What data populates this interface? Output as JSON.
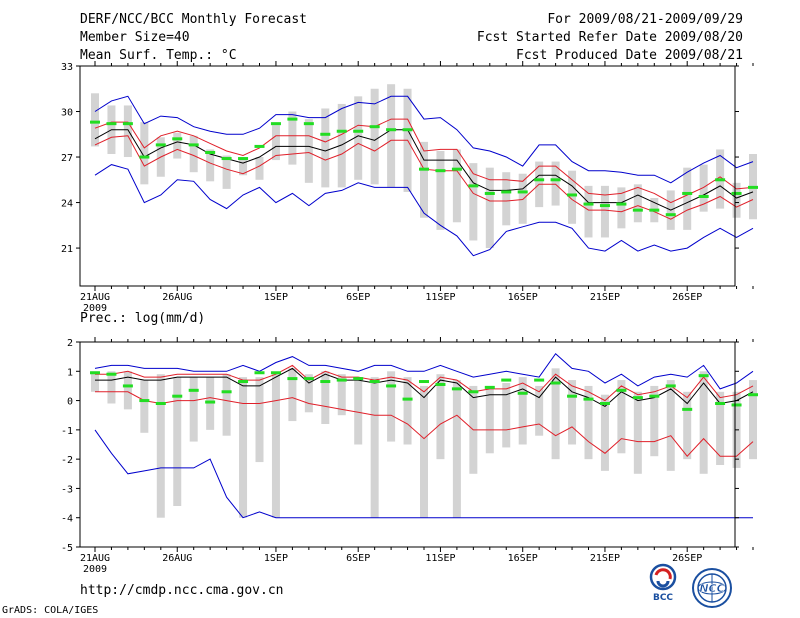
{
  "header": {
    "title": "DERF/NCC/BCC Monthly Forecast",
    "member_size": "Member Size=40",
    "variable": "Mean Surf. Temp.: °C",
    "forecast_period": "For 2009/08/21-2009/09/29",
    "refer_date": "Fcst Started Refer Date 2009/08/20",
    "produced_date": "Fcst Produced Date 2009/08/21"
  },
  "footer": {
    "url": "http://cmdp.ncc.cma.gov.cn",
    "credit": "GrADS: COLA/IGES"
  },
  "logos": {
    "bcc": "BCC",
    "ncc": "NCC"
  },
  "colors": {
    "ensemble_mean": "#000000",
    "spread": "#e0202a",
    "extreme": "#0000cc",
    "box": "#d3d3d3",
    "median": "#22dd22"
  },
  "chart_data": [
    {
      "type": "box-ensemble",
      "title": "Mean Surf. Temp.: °C",
      "year_label": "2009",
      "categories": [
        "21AUG",
        "26AUG",
        "1SEP",
        "6SEP",
        "11SEP",
        "16SEP",
        "21SEP",
        "26SEP"
      ],
      "category_day_index": [
        0,
        5,
        11,
        16,
        21,
        26,
        31,
        36
      ],
      "ylim": [
        18.5,
        33
      ],
      "yticks": [
        21,
        24,
        27,
        30,
        33
      ],
      "series": [
        {
          "name": "ensemble_mean",
          "values": [
            28.2,
            28.8,
            28.8,
            27.0,
            27.6,
            28.0,
            27.8,
            27.2,
            26.9,
            26.6,
            27.0,
            27.7,
            27.7,
            27.7,
            27.4,
            27.8,
            28.4,
            28.1,
            28.8,
            28.8,
            26.8,
            26.8,
            26.8,
            25.3,
            24.8,
            24.8,
            24.9,
            25.8,
            25.8,
            25.1,
            24.0,
            24.0,
            24.0,
            24.5,
            24.0,
            23.5,
            24.0,
            24.5,
            25.1,
            24.3,
            24.7
          ]
        },
        {
          "name": "spread_upper",
          "values": [
            28.9,
            29.3,
            29.3,
            27.6,
            28.4,
            28.7,
            28.4,
            27.9,
            27.4,
            27.1,
            27.6,
            28.4,
            28.4,
            28.4,
            28.0,
            28.5,
            29.1,
            29.0,
            29.5,
            29.5,
            27.4,
            27.5,
            27.5,
            25.9,
            25.5,
            25.5,
            25.4,
            26.4,
            26.4,
            25.5,
            24.6,
            24.5,
            24.6,
            25.0,
            24.6,
            24.0,
            24.5,
            25.0,
            25.7,
            24.9,
            25.0
          ]
        },
        {
          "name": "spread_lower",
          "values": [
            27.8,
            28.3,
            28.4,
            26.4,
            27.0,
            27.5,
            27.1,
            26.6,
            26.2,
            25.9,
            26.4,
            27.1,
            27.2,
            27.3,
            26.8,
            27.2,
            27.9,
            27.4,
            28.1,
            28.1,
            26.2,
            26.1,
            26.1,
            24.6,
            24.1,
            24.1,
            24.2,
            25.2,
            25.2,
            24.2,
            23.5,
            23.5,
            23.4,
            23.8,
            23.4,
            22.9,
            23.5,
            23.9,
            24.4,
            23.7,
            24.2
          ]
        },
        {
          "name": "max",
          "values": [
            30.0,
            30.7,
            31.0,
            29.2,
            29.7,
            29.6,
            29.0,
            28.7,
            28.5,
            28.5,
            28.9,
            29.8,
            29.8,
            29.6,
            29.6,
            30.2,
            30.6,
            30.5,
            31.0,
            31.0,
            29.5,
            29.6,
            28.8,
            27.6,
            27.4,
            27.0,
            26.4,
            27.8,
            27.8,
            26.7,
            26.1,
            26.1,
            26.0,
            25.8,
            25.8,
            25.3,
            26.0,
            26.6,
            27.1,
            26.3,
            26.7
          ]
        },
        {
          "name": "min",
          "values": [
            25.8,
            26.5,
            26.2,
            24.0,
            24.5,
            25.5,
            25.4,
            24.2,
            23.6,
            24.5,
            25.0,
            24.0,
            24.6,
            23.8,
            24.6,
            24.8,
            25.3,
            25.0,
            25.0,
            25.0,
            23.3,
            22.5,
            21.8,
            20.5,
            20.9,
            22.1,
            22.4,
            22.7,
            22.7,
            22.3,
            21.0,
            20.8,
            21.5,
            20.8,
            21.2,
            20.8,
            21.0,
            21.7,
            22.3,
            21.7,
            22.3
          ]
        },
        {
          "name": "box_high",
          "values": [
            31.2,
            30.4,
            30.4,
            29.3,
            28.3,
            28.6,
            28.4,
            27.5,
            27.1,
            26.8,
            27.0,
            29.1,
            30.0,
            29.5,
            30.2,
            30.5,
            31.0,
            31.5,
            31.8,
            31.5,
            28.0,
            27.4,
            27.5,
            26.6,
            26.3,
            26.0,
            25.9,
            26.7,
            26.7,
            26.1,
            25.1,
            25.1,
            25.0,
            25.2,
            24.3,
            24.8,
            26.3,
            26.5,
            27.5,
            25.3,
            27.2
          ]
        },
        {
          "name": "box_low",
          "values": [
            27.7,
            27.2,
            27.0,
            25.2,
            25.7,
            26.9,
            26.0,
            25.4,
            24.9,
            25.8,
            25.5,
            26.8,
            26.5,
            25.3,
            25.0,
            25.0,
            25.5,
            25.2,
            25.0,
            24.7,
            23.0,
            22.2,
            22.7,
            21.5,
            21.0,
            22.5,
            22.6,
            23.7,
            23.8,
            22.6,
            21.7,
            21.7,
            22.3,
            22.7,
            22.7,
            22.2,
            22.2,
            23.4,
            23.6,
            23.0,
            22.9
          ]
        },
        {
          "name": "median",
          "values": [
            29.3,
            29.2,
            29.2,
            27.0,
            27.8,
            28.2,
            27.8,
            27.3,
            26.9,
            26.9,
            27.7,
            29.2,
            29.5,
            29.2,
            28.5,
            28.7,
            28.7,
            29.0,
            28.8,
            28.8,
            26.2,
            26.1,
            26.2,
            25.1,
            24.6,
            24.7,
            24.7,
            25.5,
            25.5,
            24.5,
            23.9,
            23.8,
            23.9,
            23.5,
            23.5,
            23.2,
            24.6,
            24.4,
            25.5,
            24.6,
            25.0
          ]
        }
      ]
    },
    {
      "type": "box-ensemble",
      "title": "Prec.: log(mm/d)",
      "year_label": "2009",
      "categories": [
        "21AUG",
        "26AUG",
        "1SEP",
        "6SEP",
        "11SEP",
        "16SEP",
        "21SEP",
        "26SEP"
      ],
      "category_day_index": [
        0,
        5,
        11,
        16,
        21,
        26,
        31,
        36
      ],
      "ylim": [
        -5,
        2
      ],
      "yticks": [
        -5,
        -4,
        -3,
        -2,
        -1,
        0,
        1,
        2
      ],
      "series": [
        {
          "name": "ensemble_mean",
          "values": [
            0.7,
            0.7,
            0.8,
            0.7,
            0.7,
            0.8,
            0.8,
            0.8,
            0.8,
            0.5,
            0.5,
            0.8,
            1.1,
            0.6,
            0.9,
            0.7,
            0.7,
            0.6,
            0.7,
            0.6,
            0.1,
            0.7,
            0.6,
            0.1,
            0.2,
            0.2,
            0.4,
            0.1,
            0.8,
            0.3,
            0.1,
            -0.2,
            0.3,
            0.0,
            0.1,
            0.4,
            -0.1,
            0.6,
            -0.1,
            0.0,
            0.3
          ]
        },
        {
          "name": "spread_upper",
          "values": [
            0.9,
            0.9,
            1.0,
            0.8,
            0.8,
            0.9,
            0.9,
            0.9,
            0.9,
            0.7,
            0.7,
            0.9,
            1.2,
            0.7,
            1.0,
            0.8,
            0.8,
            0.7,
            0.8,
            0.7,
            0.3,
            0.8,
            0.7,
            0.3,
            0.4,
            0.4,
            0.6,
            0.3,
            0.9,
            0.5,
            0.3,
            0.0,
            0.5,
            0.2,
            0.3,
            0.5,
            0.1,
            0.8,
            0.1,
            0.2,
            0.5
          ]
        },
        {
          "name": "spread_lower",
          "values": [
            0.3,
            0.3,
            0.3,
            0.0,
            -0.1,
            0.0,
            0.0,
            0.1,
            0.0,
            -0.1,
            -0.1,
            0.0,
            0.1,
            -0.1,
            -0.2,
            -0.3,
            -0.4,
            -0.5,
            -0.5,
            -0.8,
            -1.3,
            -0.8,
            -0.5,
            -1.0,
            -1.0,
            -1.0,
            -0.9,
            -0.8,
            -1.2,
            -0.9,
            -1.4,
            -1.8,
            -1.3,
            -1.4,
            -1.4,
            -1.2,
            -1.9,
            -1.3,
            -1.9,
            -1.9,
            -1.4
          ]
        },
        {
          "name": "max",
          "values": [
            1.1,
            1.2,
            1.2,
            1.1,
            1.1,
            1.1,
            1.0,
            1.0,
            1.0,
            1.2,
            1.0,
            1.3,
            1.5,
            1.2,
            1.2,
            1.1,
            1.0,
            1.2,
            1.2,
            1.0,
            1.0,
            1.2,
            1.0,
            0.8,
            0.9,
            1.0,
            0.9,
            0.8,
            1.6,
            1.1,
            1.0,
            0.6,
            0.9,
            0.5,
            0.8,
            0.9,
            0.8,
            1.2,
            0.4,
            0.6,
            1.0
          ]
        },
        {
          "name": "min",
          "values": [
            -1.0,
            -1.8,
            -2.5,
            -2.4,
            -2.3,
            -2.3,
            -2.3,
            -2.0,
            -3.3,
            -4.0,
            -3.8,
            -4.0,
            -4.0,
            -4.0,
            -4.0,
            -4.0,
            -4.0,
            -4.0,
            -4.0,
            -4.0,
            -4.0,
            -4.0,
            -4.0,
            -4.0,
            -4.0,
            -4.0,
            -4.0,
            -4.0,
            -4.0,
            -4.0,
            -4.0,
            -4.0,
            -4.0,
            -4.0,
            -4.0,
            -4.0,
            -4.0,
            -4.0,
            -4.0,
            -4.0,
            -4.0
          ]
        },
        {
          "name": "box_high",
          "values": [
            1.0,
            1.0,
            1.0,
            0.7,
            0.9,
            0.8,
            0.8,
            0.8,
            0.9,
            0.8,
            0.8,
            0.9,
            1.1,
            0.9,
            1.0,
            0.9,
            0.8,
            0.8,
            1.0,
            0.8,
            0.5,
            0.9,
            0.7,
            0.5,
            0.5,
            0.6,
            0.8,
            0.5,
            1.1,
            0.7,
            0.5,
            0.2,
            0.7,
            0.3,
            0.5,
            0.7,
            0.3,
            1.0,
            0.3,
            0.3,
            0.7
          ]
        },
        {
          "name": "box_low",
          "values": [
            0.3,
            -0.1,
            -0.3,
            -1.1,
            -4.0,
            -3.6,
            -1.4,
            -1.0,
            -1.2,
            -4.0,
            -2.1,
            -4.0,
            -0.7,
            -0.4,
            -0.8,
            -0.5,
            -1.5,
            -4.0,
            -1.4,
            -1.5,
            -4.0,
            -2.0,
            -4.0,
            -2.5,
            -1.8,
            -1.6,
            -1.5,
            -1.2,
            -2.0,
            -1.5,
            -2.0,
            -2.4,
            -1.8,
            -2.5,
            -1.9,
            -2.4,
            -2.0,
            -2.5,
            -2.2,
            -2.3,
            -2.0
          ]
        },
        {
          "name": "median",
          "values": [
            0.95,
            0.9,
            0.5,
            0.0,
            -0.1,
            0.15,
            0.35,
            -0.05,
            0.3,
            0.65,
            0.95,
            0.95,
            0.75,
            0.75,
            0.65,
            0.7,
            0.75,
            0.65,
            0.5,
            0.05,
            0.65,
            0.55,
            0.4,
            0.3,
            0.45,
            0.7,
            0.25,
            0.7,
            0.6,
            0.15,
            0.05,
            -0.1,
            0.35,
            0.1,
            0.15,
            0.5,
            -0.3,
            0.85,
            -0.1,
            -0.15,
            0.2
          ]
        }
      ]
    }
  ]
}
